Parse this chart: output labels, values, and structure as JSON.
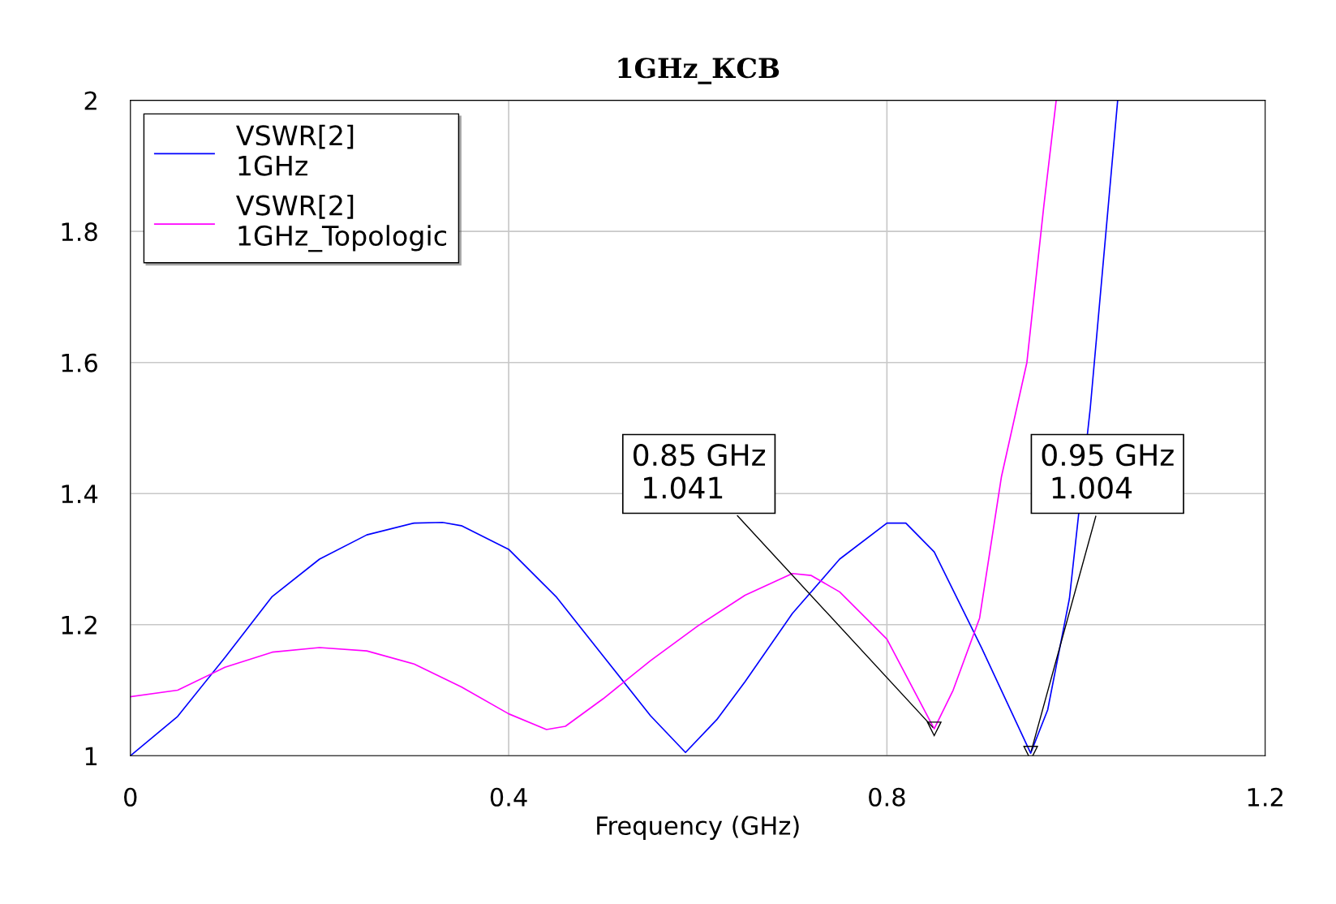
{
  "chart_data": {
    "type": "line",
    "title": "1GHz_КСВ",
    "xlabel": "Frequency (GHz)",
    "xlim": [
      0,
      1.2
    ],
    "xticks": [
      0,
      0.4,
      0.8,
      1.2
    ],
    "ylim": [
      1,
      2
    ],
    "yticks": [
      1,
      1.2,
      1.4,
      1.6,
      1.8,
      2
    ],
    "grid": true,
    "legend": "top left",
    "line_style": "solid",
    "series": [
      {
        "name": "VSWR[2]\n1GHz",
        "color": "#0000ff",
        "x": [
          0,
          0.05,
          0.1,
          0.15,
          0.2,
          0.25,
          0.3,
          0.33,
          0.35,
          0.4,
          0.45,
          0.5,
          0.55,
          0.587,
          0.62,
          0.65,
          0.7,
          0.75,
          0.8,
          0.82,
          0.85,
          0.9,
          0.952,
          0.97,
          0.993,
          1.015,
          1.044
        ],
        "values": [
          1.0,
          1.06,
          1.15,
          1.243,
          1.3,
          1.337,
          1.355,
          1.356,
          1.351,
          1.315,
          1.243,
          1.152,
          1.061,
          1.005,
          1.055,
          1.113,
          1.217,
          1.3,
          1.355,
          1.355,
          1.311,
          1.165,
          1.004,
          1.07,
          1.24,
          1.53,
          2.0
        ]
      },
      {
        "name": "VSWR[2]\n1GHz_Topologic",
        "color": "#ff00ff",
        "x": [
          0,
          0.05,
          0.1,
          0.15,
          0.2,
          0.25,
          0.3,
          0.35,
          0.4,
          0.44,
          0.46,
          0.5,
          0.55,
          0.6,
          0.65,
          0.7,
          0.72,
          0.75,
          0.8,
          0.85,
          0.87,
          0.898,
          0.921,
          0.948,
          0.966,
          0.979
        ],
        "values": [
          1.09,
          1.1,
          1.135,
          1.158,
          1.165,
          1.16,
          1.14,
          1.105,
          1.064,
          1.04,
          1.045,
          1.087,
          1.145,
          1.198,
          1.245,
          1.278,
          1.275,
          1.25,
          1.178,
          1.041,
          1.1,
          1.21,
          1.425,
          1.6,
          1.84,
          2.0
        ]
      }
    ],
    "annotations": [
      {
        "text": "0.85 GHz\n 1.041",
        "x": 0.85,
        "y": 1.041
      },
      {
        "text": "0.95 GHz\n 1.004",
        "x": 0.952,
        "y": 1.004
      }
    ]
  }
}
